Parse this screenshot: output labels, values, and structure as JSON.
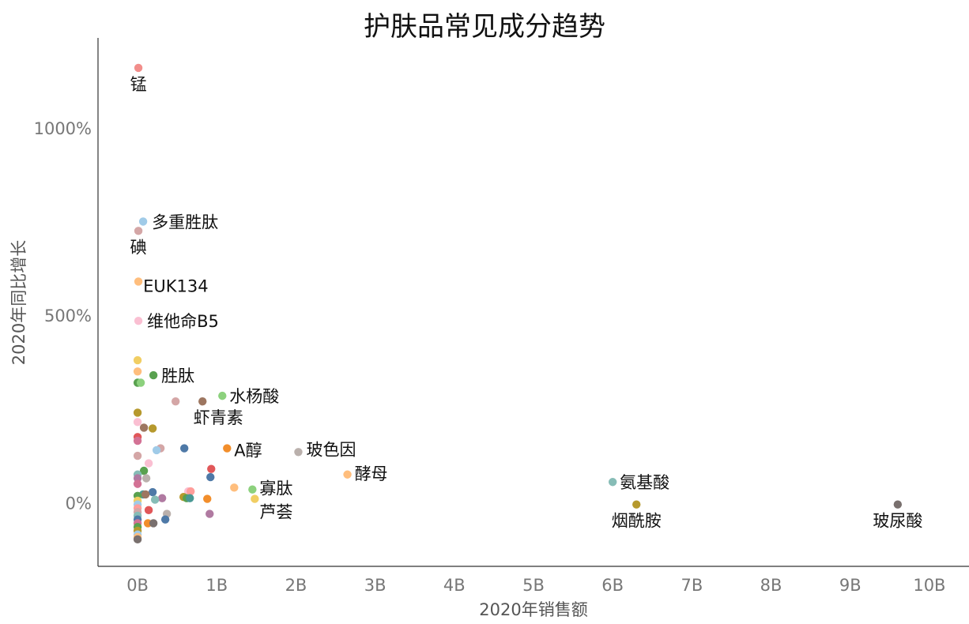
{
  "chart_data": {
    "type": "scatter",
    "title": "护肤品常见成分趋势",
    "xlabel": "2020年销售额",
    "ylabel": "2020年同比增长",
    "xlim": [
      -0.5,
      10.5
    ],
    "ylim": [
      -170,
      1240
    ],
    "x_unit": "B",
    "y_unit": "%",
    "x_ticks": [
      0,
      1,
      2,
      3,
      4,
      5,
      6,
      7,
      8,
      9,
      10
    ],
    "x_tick_labels": [
      "0B",
      "1B",
      "2B",
      "3B",
      "4B",
      "5B",
      "6B",
      "7B",
      "8B",
      "9B",
      "10B"
    ],
    "y_ticks": [
      0,
      500,
      1000
    ],
    "y_tick_labels": [
      "0%",
      "500%",
      "1000%"
    ],
    "grid": false,
    "legend": "none",
    "points": [
      {
        "label": "锰",
        "x": 0.01,
        "y": 1160,
        "color": "#f28e8b"
      },
      {
        "label": "多重胜肽",
        "x": 0.07,
        "y": 750,
        "color": "#a0cbe8"
      },
      {
        "label": "碘",
        "x": 0.01,
        "y": 725,
        "color": "#d4a6a6"
      },
      {
        "label": "EUK134",
        "x": 0.01,
        "y": 590,
        "color": "#ffbe7d"
      },
      {
        "label": "维他命B5",
        "x": 0.01,
        "y": 485,
        "color": "#fabfd2"
      },
      {
        "label": "胜肽",
        "x": 0.2,
        "y": 340,
        "color": "#59a14f"
      },
      {
        "label": "水杨酸",
        "x": 1.07,
        "y": 285,
        "color": "#8cd17d"
      },
      {
        "label": "虾青素",
        "x": 0.82,
        "y": 270,
        "color": "#9d7660"
      },
      {
        "label": "A醇",
        "x": 1.13,
        "y": 145,
        "color": "#f28e2b"
      },
      {
        "label": "玻色因",
        "x": 2.03,
        "y": 135,
        "color": "#bab0ac"
      },
      {
        "label": "酵母",
        "x": 2.65,
        "y": 75,
        "color": "#ffbe7d"
      },
      {
        "label": "寡肽",
        "x": 1.45,
        "y": 35,
        "color": "#8cd17d"
      },
      {
        "label": "芦荟",
        "x": 1.48,
        "y": 10,
        "color": "#f1ce63"
      },
      {
        "label": "氨基酸",
        "x": 6.0,
        "y": 55,
        "color": "#86bcb6"
      },
      {
        "label": "烟酰胺",
        "x": 6.3,
        "y": -5,
        "color": "#b6992d"
      },
      {
        "label": "玻尿酸",
        "x": 9.6,
        "y": -5,
        "color": "#79706e"
      },
      {
        "x": 0.0,
        "y": 380,
        "color": "#f1ce63"
      },
      {
        "x": 0.0,
        "y": 350,
        "color": "#ffbe7d"
      },
      {
        "x": 0.0,
        "y": 320,
        "color": "#59a14f"
      },
      {
        "x": 0.04,
        "y": 320,
        "color": "#8cd17d"
      },
      {
        "x": 0.48,
        "y": 270,
        "color": "#d4a6a6"
      },
      {
        "x": 0.0,
        "y": 240,
        "color": "#b6992d"
      },
      {
        "x": 0.0,
        "y": 215,
        "color": "#fabfd2"
      },
      {
        "x": 0.08,
        "y": 200,
        "color": "#9d7660"
      },
      {
        "x": 0.19,
        "y": 198,
        "color": "#b6992d"
      },
      {
        "x": 0.0,
        "y": 175,
        "color": "#e15759"
      },
      {
        "x": 0.0,
        "y": 165,
        "color": "#d37295"
      },
      {
        "x": 0.29,
        "y": 145,
        "color": "#d4a6a6"
      },
      {
        "x": 0.24,
        "y": 140,
        "color": "#a0cbe8"
      },
      {
        "x": 0.59,
        "y": 145,
        "color": "#4e79a7"
      },
      {
        "x": 0.0,
        "y": 125,
        "color": "#d4a6a6"
      },
      {
        "x": 0.14,
        "y": 105,
        "color": "#fabfd2"
      },
      {
        "x": 0.08,
        "y": 85,
        "color": "#59a14f"
      },
      {
        "x": 0.0,
        "y": 75,
        "color": "#86bcb6"
      },
      {
        "x": 0.93,
        "y": 90,
        "color": "#e15759"
      },
      {
        "x": 0.92,
        "y": 68,
        "color": "#4e79a7"
      },
      {
        "x": 0.0,
        "y": 65,
        "color": "#b07aa1"
      },
      {
        "x": 0.11,
        "y": 65,
        "color": "#bab0ac"
      },
      {
        "x": 0.0,
        "y": 50,
        "color": "#d37295"
      },
      {
        "x": 1.22,
        "y": 40,
        "color": "#ffbe7d"
      },
      {
        "x": 0.64,
        "y": 30,
        "color": "#fabfd2"
      },
      {
        "x": 0.67,
        "y": 30,
        "color": "#ff9d9a"
      },
      {
        "x": 0.19,
        "y": 28,
        "color": "#4e79a7"
      },
      {
        "x": 0.07,
        "y": 22,
        "color": "#499894"
      },
      {
        "x": 0.1,
        "y": 22,
        "color": "#9d7660"
      },
      {
        "x": 0.0,
        "y": 18,
        "color": "#59a14f"
      },
      {
        "x": 0.31,
        "y": 12,
        "color": "#b07aa1"
      },
      {
        "x": 0.58,
        "y": 15,
        "color": "#b6992d"
      },
      {
        "x": 0.62,
        "y": 12,
        "color": "#59a14f"
      },
      {
        "x": 0.66,
        "y": 12,
        "color": "#499894"
      },
      {
        "x": 0.88,
        "y": 10,
        "color": "#f28e2b"
      },
      {
        "x": 0.22,
        "y": 8,
        "color": "#86bcb6"
      },
      {
        "x": 0.0,
        "y": 5,
        "color": "#f1ce63"
      },
      {
        "x": 0.0,
        "y": -5,
        "color": "#a0cbe8"
      },
      {
        "x": 0.0,
        "y": -15,
        "color": "#ff9d9a"
      },
      {
        "x": 0.0,
        "y": -25,
        "color": "#d4a6a6"
      },
      {
        "x": 0.14,
        "y": -20,
        "color": "#e15759"
      },
      {
        "x": 0.0,
        "y": -35,
        "color": "#86bcb6"
      },
      {
        "x": 0.37,
        "y": -30,
        "color": "#bab0ac"
      },
      {
        "x": 0.91,
        "y": -30,
        "color": "#b07aa1"
      },
      {
        "x": 0.0,
        "y": -45,
        "color": "#4e79a7"
      },
      {
        "x": 0.35,
        "y": -45,
        "color": "#4e79a7"
      },
      {
        "x": 0.13,
        "y": -55,
        "color": "#f28e2b"
      },
      {
        "x": 0.0,
        "y": -55,
        "color": "#d37295"
      },
      {
        "x": 0.2,
        "y": -55,
        "color": "#79706e"
      },
      {
        "x": 0.0,
        "y": -65,
        "color": "#59a14f"
      },
      {
        "x": 0.0,
        "y": -75,
        "color": "#b6992d"
      },
      {
        "x": 0.0,
        "y": -85,
        "color": "#a0cbe8"
      },
      {
        "x": 0.0,
        "y": -92,
        "color": "#ffbe7d"
      },
      {
        "x": 0.0,
        "y": -98,
        "color": "#79706e"
      }
    ]
  }
}
